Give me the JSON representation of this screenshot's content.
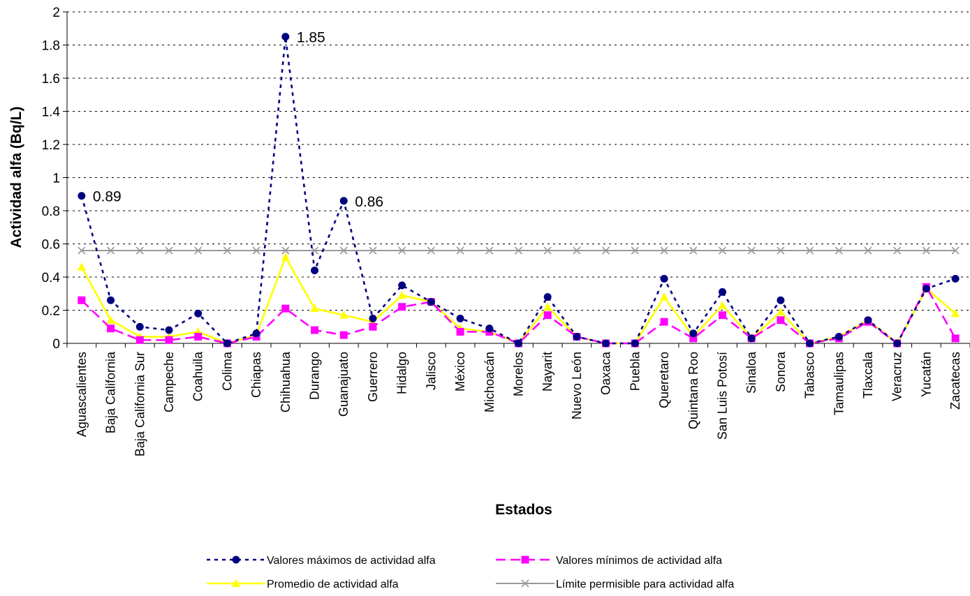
{
  "chart_data": {
    "type": "line",
    "xlabel": "Estados",
    "ylabel": "Actividad alfa (Bq/L)",
    "ylim": [
      0,
      2
    ],
    "yticks": [
      "0",
      "0.2",
      "0.4",
      "0.6",
      "0.8",
      "1",
      "1.2",
      "1.4",
      "1.6",
      "1.8",
      "2"
    ],
    "grid": "horizontal dashed",
    "legend_position": "bottom",
    "categories": [
      "Aguascalientes",
      "Baja California",
      "Baja California Sur",
      "Campeche",
      "Coahuila",
      "Colima",
      "Chiapas",
      "Chihuahua",
      "Durango",
      "Guanajuato",
      "Guerrero",
      "Hidalgo",
      "Jalisco",
      "México",
      "Michoacán",
      "Morelos",
      "Nayarit",
      "Nuevo León",
      "Oaxaca",
      "Puebla",
      "Queretaro",
      "Quintana Roo",
      "San Luis Potosí",
      "Sinaloa",
      "Sonora",
      "Tabasco",
      "Tamaulipas",
      "Tlaxcala",
      "Veracruz",
      "Yucatán",
      "Zacatecas"
    ],
    "series": [
      {
        "name": "Valores máximos de actividad alfa",
        "color": "#000080",
        "line": "dotted",
        "marker": "circle",
        "values": [
          0.89,
          0.26,
          0.1,
          0.08,
          0.18,
          0.0,
          0.06,
          1.85,
          0.44,
          0.86,
          0.15,
          0.35,
          0.25,
          0.15,
          0.09,
          0.0,
          0.28,
          0.04,
          0.0,
          0.0,
          0.39,
          0.06,
          0.31,
          0.03,
          0.26,
          0.0,
          0.04,
          0.14,
          0.0,
          0.33,
          0.39
        ]
      },
      {
        "name": "Valores mínimos de actividad alfa",
        "color": "#ff00ff",
        "line": "dashed",
        "marker": "square",
        "values": [
          0.26,
          0.09,
          0.02,
          0.02,
          0.04,
          0.0,
          0.04,
          0.21,
          0.08,
          0.05,
          0.1,
          0.22,
          0.25,
          0.07,
          0.07,
          0.0,
          0.17,
          0.04,
          0.0,
          0.0,
          0.13,
          0.03,
          0.17,
          0.03,
          0.14,
          0.0,
          0.03,
          0.13,
          0.0,
          0.34,
          0.03
        ]
      },
      {
        "name": "Promedio de actividad alfa",
        "color": "#ffff00",
        "line": "solid",
        "marker": "triangle",
        "values": [
          0.46,
          0.14,
          0.04,
          0.04,
          0.07,
          0.0,
          0.05,
          0.52,
          0.21,
          0.17,
          0.13,
          0.29,
          0.25,
          0.09,
          0.07,
          0.0,
          0.22,
          0.04,
          0.0,
          0.0,
          0.28,
          0.04,
          0.23,
          0.03,
          0.19,
          0.0,
          0.04,
          0.14,
          0.0,
          0.33,
          0.18
        ]
      },
      {
        "name": "Límite permisible para actividad alfa",
        "color": "#999999",
        "line": "solid",
        "marker": "x",
        "values": [
          0.56,
          0.56,
          0.56,
          0.56,
          0.56,
          0.56,
          0.56,
          0.56,
          0.56,
          0.56,
          0.56,
          0.56,
          0.56,
          0.56,
          0.56,
          0.56,
          0.56,
          0.56,
          0.56,
          0.56,
          0.56,
          0.56,
          0.56,
          0.56,
          0.56,
          0.56,
          0.56,
          0.56,
          0.56,
          0.56,
          0.56
        ]
      }
    ],
    "annotations": [
      {
        "series": 0,
        "index": 0,
        "text": "0.89"
      },
      {
        "series": 0,
        "index": 7,
        "text": "1.85"
      },
      {
        "series": 0,
        "index": 9,
        "text": "0.86"
      }
    ]
  }
}
